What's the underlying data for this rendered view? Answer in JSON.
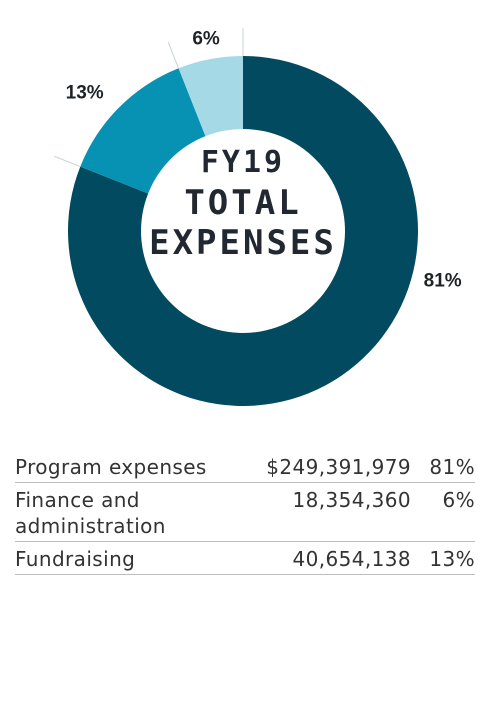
{
  "chart_data": {
    "type": "pie",
    "title": "FY19 TOTAL EXPENSES",
    "title_lines": [
      "FY19",
      "TOTAL",
      "EXPENSES"
    ],
    "donut": true,
    "categories": [
      "Program expenses",
      "Fundraising",
      "Finance and administration"
    ],
    "values": [
      81,
      13,
      6
    ],
    "labels": [
      "81%",
      "13%",
      "6%"
    ],
    "colors": [
      "#024a5f",
      "#0792b3",
      "#a5d9e6"
    ]
  },
  "table": {
    "rows": [
      {
        "name": "Program expenses",
        "amount": "$249,391,979",
        "pct": "81%"
      },
      {
        "name": "Finance and administration",
        "amount": "18,354,360",
        "pct": "6%"
      },
      {
        "name": "Fundraising",
        "amount": "40,654,138",
        "pct": "13%"
      }
    ]
  }
}
